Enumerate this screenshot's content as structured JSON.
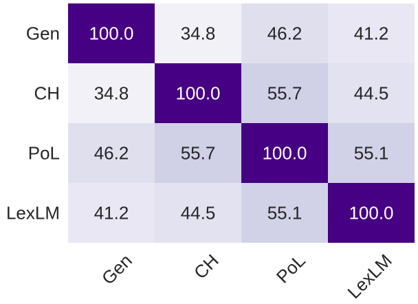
{
  "chart_data": {
    "type": "heatmap",
    "title": "",
    "xlabel": "",
    "ylabel": "",
    "x_categories": [
      "Gen",
      "CH",
      "PoL",
      "LexLM"
    ],
    "y_categories": [
      "Gen",
      "CH",
      "PoL",
      "LexLM"
    ],
    "values": [
      [
        100.0,
        34.8,
        46.2,
        41.2
      ],
      [
        34.8,
        100.0,
        55.7,
        44.5
      ],
      [
        46.2,
        55.7,
        100.0,
        55.1
      ],
      [
        41.2,
        44.5,
        55.1,
        100.0
      ]
    ],
    "value_range": [
      34.8,
      100.0
    ],
    "colormap": "Purples",
    "colors": {
      "low": "#f3f1f8",
      "mid": "#bcbddc",
      "high": "#460083",
      "text_dark": "#262626",
      "text_light": "#ffffff"
    },
    "grid": false,
    "colorbar": false,
    "x_tick_rotation_deg": -45
  }
}
